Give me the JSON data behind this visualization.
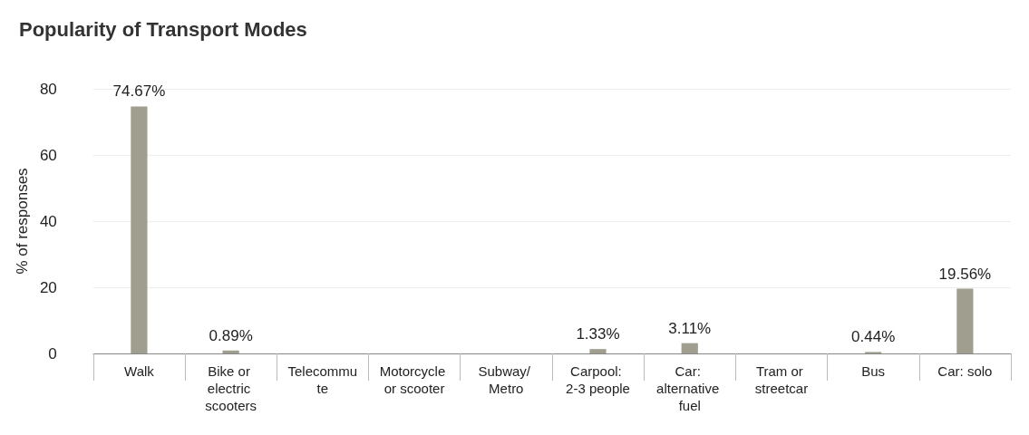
{
  "chart_data": {
    "type": "bar",
    "title": "Popularity of Transport Modes",
    "ylabel": "% of responses",
    "categories": [
      "Walk",
      "Bike or electric scooters",
      "Telecommute",
      "Motorcycle or scooter",
      "Subway/ Metro",
      "Carpool: 2-3 people",
      "Car: alternative fuel",
      "Tram or streetcar",
      "Bus",
      "Car: solo"
    ],
    "values": [
      74.67,
      0.89,
      0,
      0,
      0,
      1.33,
      3.11,
      0,
      0.44,
      19.56
    ],
    "value_labels": [
      "74.67%",
      "0.89%",
      null,
      null,
      null,
      "1.33%",
      "3.11%",
      null,
      "0.44%",
      "19.56%"
    ],
    "color": "#a09e8f",
    "ylim": [
      0,
      80
    ],
    "yticks": [
      0,
      20,
      40,
      60,
      80
    ],
    "grid": "y"
  }
}
